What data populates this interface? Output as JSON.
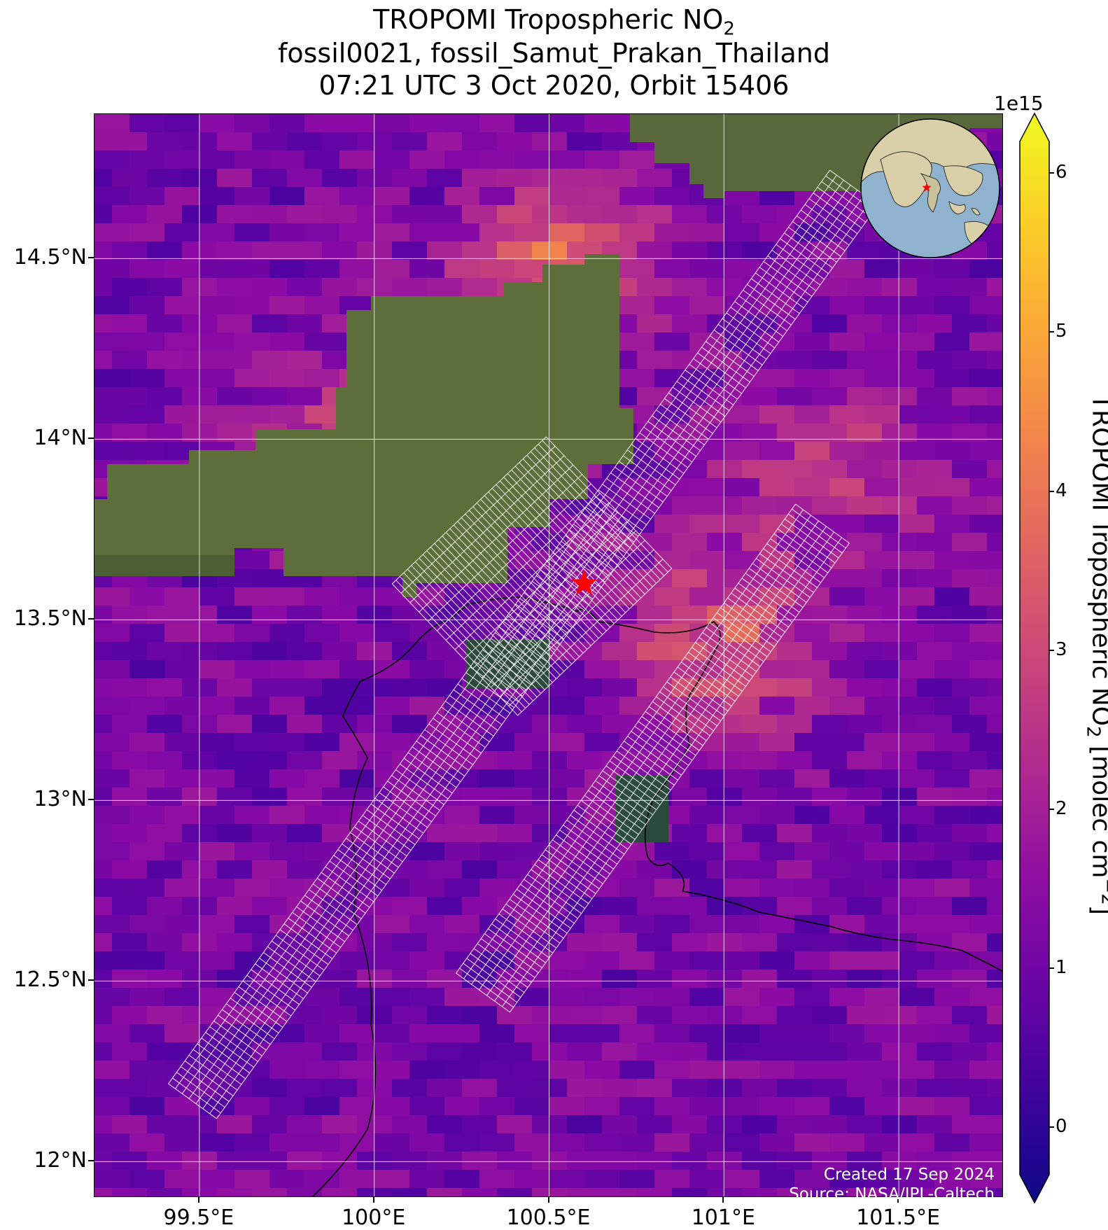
{
  "title": {
    "line1_prefix": "TROPOMI Tropospheric NO",
    "line1_sub": "2",
    "line2": "fossil0021, fossil_Samut_Prakan_Thailand",
    "line3": "07:21 UTC 3 Oct 2020, Orbit 15406"
  },
  "map": {
    "lon_range": [
      99.2,
      101.8
    ],
    "lat_range": [
      11.9,
      14.9
    ],
    "lon_ticks": [
      {
        "value": 99.5,
        "label": "99.5°E"
      },
      {
        "value": 100.0,
        "label": "100°E"
      },
      {
        "value": 100.5,
        "label": "100.5°E"
      },
      {
        "value": 101.0,
        "label": "101°E"
      },
      {
        "value": 101.5,
        "label": "101.5°E"
      }
    ],
    "lat_ticks": [
      {
        "value": 14.5,
        "label": "14.5°N"
      },
      {
        "value": 14.0,
        "label": "14°N"
      },
      {
        "value": 13.5,
        "label": "13.5°N"
      },
      {
        "value": 13.0,
        "label": "13°N"
      },
      {
        "value": 12.5,
        "label": "12.5°N"
      },
      {
        "value": 12.0,
        "label": "12°N"
      }
    ],
    "target_marker": {
      "lon": 100.6,
      "lat": 13.6,
      "color": "#ff0000",
      "symbol": "star"
    },
    "colormap": "plasma",
    "grid_color": "#ffffff",
    "coastline_color": "#000000"
  },
  "colorbar": {
    "exponent_label": "1e15",
    "range": [
      -0.3,
      6.2
    ],
    "ticks": [
      {
        "value": 0,
        "label": "0"
      },
      {
        "value": 1,
        "label": "1"
      },
      {
        "value": 2,
        "label": "2"
      },
      {
        "value": 3,
        "label": "3"
      },
      {
        "value": 4,
        "label": "4"
      },
      {
        "value": 5,
        "label": "5"
      },
      {
        "value": 6,
        "label": "6"
      }
    ],
    "label_prefix": "TROPOMI Tropospheric NO",
    "label_sub": "2",
    "label_mid": " [molec cm",
    "label_sup": "−2",
    "label_suffix": "]",
    "extend": "both"
  },
  "inset_globe": {
    "marker_color": "#ff0000",
    "ocean_color": "#8fb3cf",
    "land_color": "#d9cfa8"
  },
  "credits": {
    "created": "Created 17 Sep 2024",
    "source": "Source: NASA/JPL-Caltech"
  }
}
